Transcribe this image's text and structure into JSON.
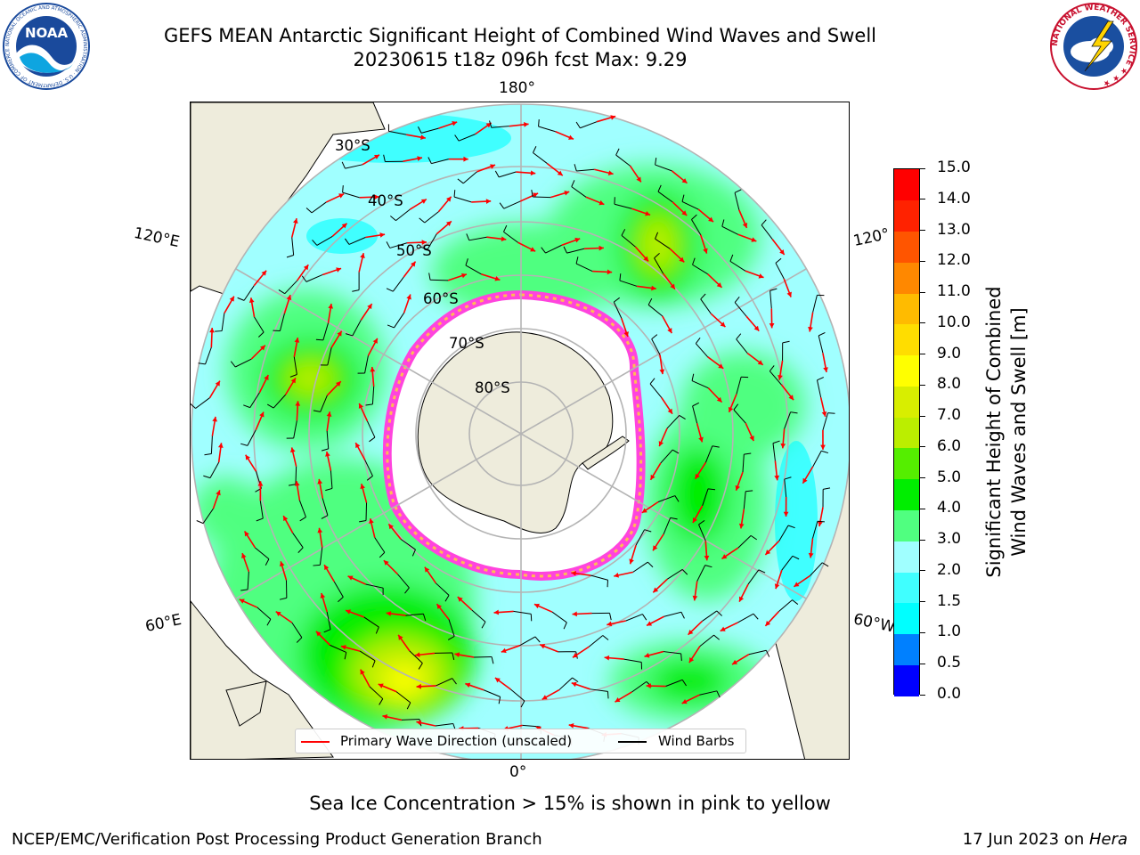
{
  "header": {
    "title_line1": "GEFS MEAN Antarctic Significant Height of Combined Wind Waves and Swell",
    "title_line2": "20230615 t18z 096h fcst   Max: 9.29"
  },
  "logos": {
    "noaa": {
      "text": "NOAA",
      "ring_text": "NATIONAL OCEANIC AND ATMOSPHERIC ADMINISTRATION · U.S. DEPARTMENT OF COMMERCE ·"
    },
    "nws": {
      "ring_text": "NATIONAL WEATHER SERVICE ★ ★ ★"
    }
  },
  "map": {
    "projection": "south-polar-stereographic",
    "meridian_labels": {
      "top": "180°",
      "bottom": "0°",
      "upper_left": "120°E",
      "upper_right": "120°",
      "lower_left": "60°E",
      "lower_right": "60°W"
    },
    "latitude_labels": [
      "30°S",
      "40°S",
      "50°S",
      "60°S",
      "70°S",
      "80°S"
    ],
    "colors": {
      "land": "#eeecdc",
      "ocean": "#ffffff",
      "grid": "#b4b4b4",
      "coast": "#000000",
      "arrow": "#ff0000",
      "barb": "#000000"
    }
  },
  "colorbar": {
    "label_line1": "Significant Height of Combined",
    "label_line2": "Wind Waves and Swell [m]",
    "ticks": [
      "0.0",
      "0.5",
      "1.0",
      "1.5",
      "2.0",
      "3.0",
      "4.0",
      "5.0",
      "6.0",
      "7.0",
      "8.0",
      "9.0",
      "10.0",
      "11.0",
      "12.0",
      "13.0",
      "14.0",
      "15.0"
    ],
    "colors": [
      "#0000ff",
      "#0080ff",
      "#00ffff",
      "#40ffff",
      "#a0ffff",
      "#50ff80",
      "#00ee00",
      "#55ee00",
      "#bbee00",
      "#d8ee00",
      "#ffff00",
      "#ffdd00",
      "#ffbb00",
      "#ff8800",
      "#ff5500",
      "#ff2200",
      "#ff0000"
    ]
  },
  "legend": {
    "wave_label": "Primary Wave Direction (unscaled)",
    "wind_label": "Wind Barbs",
    "wave_color": "#ff0000",
    "wind_color": "#000000"
  },
  "footer": {
    "note": "Sea Ice Concentration > 15% is shown in pink to yellow",
    "credit": "NCEP/EMC/Verification Post Processing Product Generation Branch",
    "date_prefix": "17 Jun 2023 on ",
    "date_system": "Hera"
  }
}
